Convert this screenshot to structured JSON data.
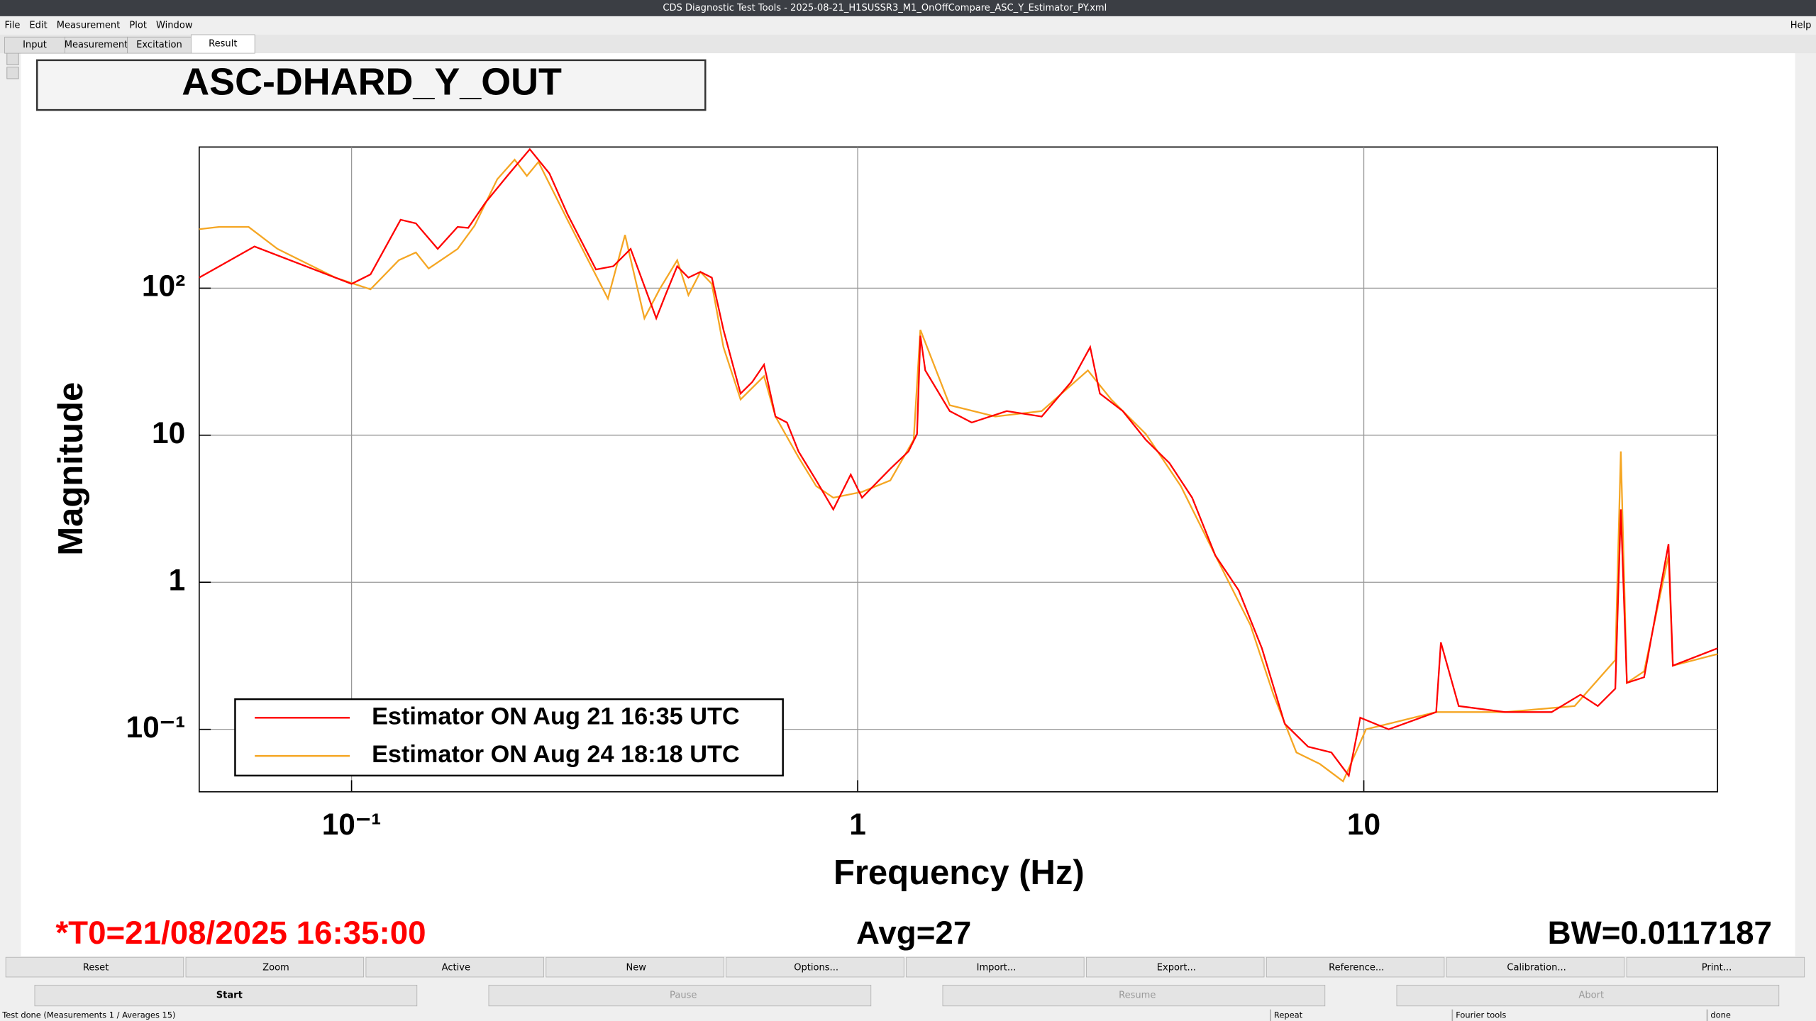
{
  "ui": {
    "window_title": "CDS Diagnostic Test Tools - 2025-08-21_H1SUSSR3_M1_OnOffCompare_ASC_Y_Estimator_PY.xml",
    "menu": [
      "File",
      "Edit",
      "Measurement",
      "Plot",
      "Window"
    ],
    "help": "Help",
    "tabs": [
      "Input",
      "Measurement",
      "Excitation",
      "Result"
    ],
    "buttons": [
      "Reset",
      "Zoom",
      "Active",
      "New",
      "Options...",
      "Import...",
      "Export...",
      "Reference...",
      "Calibration...",
      "Print..."
    ],
    "actions": [
      "Start",
      "Pause",
      "Resume",
      "Abort"
    ],
    "status": [
      "Test done (Measurements 1 / Averages 15)",
      "Repeat",
      "Fourier tools",
      "done"
    ]
  },
  "chart_data": {
    "type": "line",
    "title": "ASC-DHARD_Y_OUT",
    "x_label": "Frequency (Hz)",
    "y_label": "Magnitude",
    "annotations": [
      "*T0=21/08/2025 16:35:00",
      "Avg=27",
      "BW=0.0117187"
    ],
    "xscale": "log",
    "yscale": "log",
    "grid": true,
    "legend": "lower left",
    "xlim": [
      0.05,
      50
    ],
    "ylim": [
      0.0376,
      912
    ],
    "xticks": [
      {
        "value": 0.1,
        "label": "10⁻¹"
      },
      1,
      10
    ],
    "yticks": [
      {
        "value": 0.1,
        "label": "10⁻¹"
      },
      1,
      10,
      {
        "value": 100,
        "label": "10²"
      }
    ],
    "series": [
      {
        "name": "Estimator ON Aug 21 16:35 UTC",
        "color": "#ff0000",
        "x": [
          0.05,
          0.0643,
          0.1,
          0.109,
          0.125,
          0.134,
          0.148,
          0.162,
          0.17,
          0.184,
          0.205,
          0.225,
          0.246,
          0.267,
          0.304,
          0.329,
          0.356,
          0.4,
          0.417,
          0.44,
          0.463,
          0.489,
          0.515,
          0.543,
          0.587,
          0.619,
          0.653,
          0.688,
          0.725,
          0.764,
          0.828,
          0.895,
          0.969,
          1.02,
          1.16,
          1.26,
          1.31,
          1.33,
          1.36,
          1.52,
          1.68,
          1.97,
          2.31,
          2.64,
          2.88,
          3.01,
          3.34,
          3.71,
          4.13,
          4.58,
          5.09,
          5.66,
          6.29,
          6.98,
          7.76,
          8.63,
          9.34,
          9.84,
          11.2,
          13.9,
          14.2,
          15.4,
          19.0,
          23.5,
          26.8,
          29.0,
          31.4,
          32.2,
          33.1,
          35.8,
          40.0,
          40.8,
          50
        ],
        "values": [
          118,
          192,
          107,
          124,
          292,
          276,
          185,
          261,
          257,
          383,
          603,
          880,
          603,
          319,
          134,
          141,
          185,
          62.4,
          89.7,
          141,
          118,
          129,
          118,
          52.1,
          19.2,
          23.0,
          30.2,
          13.4,
          12.2,
          7.76,
          4.93,
          3.13,
          5.4,
          3.76,
          5.91,
          7.76,
          10.2,
          47.5,
          27.6,
          14.6,
          12.2,
          14.6,
          13.4,
          23.0,
          39.7,
          19.2,
          14.6,
          9.3,
          6.47,
          3.76,
          1.52,
          0.881,
          0.356,
          0.109,
          0.0762,
          0.0696,
          0.0484,
          0.12,
          0.1,
          0.131,
          0.39,
          0.144,
          0.131,
          0.131,
          0.172,
          0.144,
          0.189,
          3.13,
          0.207,
          0.226,
          1.82,
          0.271,
          0.356
        ]
      },
      {
        "name": "Estimator ON Aug 24 18:18 UTC",
        "color": "#f5a623",
        "x": [
          0.05,
          0.0548,
          0.0626,
          0.0714,
          0.0929,
          0.109,
          0.124,
          0.134,
          0.142,
          0.162,
          0.175,
          0.194,
          0.21,
          0.222,
          0.234,
          0.267,
          0.321,
          0.347,
          0.379,
          0.406,
          0.44,
          0.463,
          0.489,
          0.515,
          0.543,
          0.587,
          0.653,
          0.688,
          0.764,
          0.828,
          0.895,
          1.02,
          1.16,
          1.29,
          1.33,
          1.52,
          1.87,
          2.31,
          2.85,
          3.17,
          3.71,
          4.35,
          5.09,
          5.97,
          6.63,
          7.36,
          8.19,
          9.1,
          10.1,
          13.9,
          19.0,
          26.1,
          31.4,
          32.2,
          33.1,
          35.8,
          40.0,
          40.8,
          50
        ],
        "values": [
          252,
          261,
          261,
          185,
          118,
          98.2,
          155,
          175,
          136,
          185,
          266,
          550,
          748,
          580,
          722,
          292,
          84.9,
          230,
          62.4,
          98.2,
          155,
          89.7,
          129,
          107,
          39.7,
          17.5,
          25.2,
          13.4,
          7.08,
          4.51,
          3.76,
          4.12,
          4.93,
          9.3,
          52.1,
          16.0,
          13.4,
          14.6,
          27.6,
          17.5,
          10.2,
          4.51,
          1.52,
          0.512,
          0.172,
          0.0696,
          0.0581,
          0.0443,
          0.1,
          0.131,
          0.131,
          0.144,
          0.296,
          7.76,
          0.207,
          0.248,
          1.52,
          0.271,
          0.325
        ]
      }
    ]
  }
}
